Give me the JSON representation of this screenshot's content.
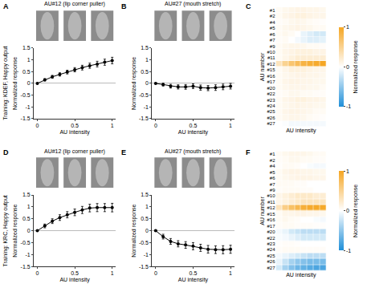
{
  "chart_data": [
    {
      "type": "line",
      "panel": "A",
      "title": "AU#12 (lip corner puller)",
      "side_label": "Training: KDEF, Happy output",
      "xlabel": "AU intensity",
      "ylabel": "Normalized response",
      "x": [
        0,
        0.1,
        0.2,
        0.3,
        0.4,
        0.5,
        0.6,
        0.7,
        0.8,
        0.9,
        1
      ],
      "values": [
        0,
        0.15,
        0.28,
        0.38,
        0.48,
        0.58,
        0.67,
        0.75,
        0.82,
        0.9,
        0.97
      ],
      "errors": [
        0.02,
        0.05,
        0.06,
        0.07,
        0.08,
        0.09,
        0.1,
        0.11,
        0.12,
        0.13,
        0.14
      ],
      "xlim": [
        -0.05,
        1.05
      ],
      "xticks": [
        0,
        0.5,
        1
      ],
      "ylim": [
        -1.5,
        1.5
      ],
      "yticks": [
        -1.5,
        -1,
        -0.5,
        0,
        0.5,
        1,
        1.5
      ],
      "grid": false
    },
    {
      "type": "line",
      "panel": "B",
      "title": "AU#27 (mouth stretch)",
      "xlabel": "AU intensity",
      "ylabel": "Normalized response",
      "x": [
        0,
        0.1,
        0.2,
        0.3,
        0.4,
        0.5,
        0.6,
        0.7,
        0.8,
        0.9,
        1
      ],
      "values": [
        0,
        -0.05,
        -0.12,
        -0.15,
        -0.15,
        -0.12,
        -0.18,
        -0.2,
        -0.18,
        -0.15,
        -0.12
      ],
      "errors": [
        0.02,
        0.06,
        0.08,
        0.09,
        0.1,
        0.1,
        0.11,
        0.11,
        0.12,
        0.12,
        0.12
      ],
      "xlim": [
        -0.05,
        1.05
      ],
      "xticks": [
        0,
        0.5,
        1
      ],
      "ylim": [
        -1.5,
        1.5
      ],
      "yticks": [
        -1.5,
        -1,
        -0.5,
        0,
        0.5,
        1,
        1.5
      ],
      "grid": false
    },
    {
      "type": "heatmap",
      "panel": "C",
      "xlabel": "AU intensity",
      "ylabel": "AU number",
      "colorbar_label": "Normalized response",
      "categories": [
        "#1",
        "#2",
        "#4",
        "#5",
        "#6",
        "#7",
        "#9",
        "#10",
        "#11",
        "#12",
        "#15",
        "#16",
        "#17",
        "#20",
        "#22",
        "#23",
        "#24",
        "#25",
        "#26",
        "#27"
      ],
      "z": [
        [
          0.05,
          0.08,
          0.1,
          0.12,
          0.12,
          0.1,
          0.1,
          0.08
        ],
        [
          0.05,
          0.1,
          0.12,
          0.15,
          0.15,
          0.12,
          0.1,
          0.1
        ],
        [
          0.03,
          0.05,
          0.08,
          0.1,
          0.08,
          0.05,
          0.03,
          0.02
        ],
        [
          0.05,
          0.08,
          0.1,
          0.12,
          0.1,
          0.08,
          0.05,
          0.05
        ],
        [
          0.05,
          0.08,
          0.05,
          0,
          -0.1,
          -0.15,
          -0.2,
          -0.2
        ],
        [
          0.03,
          0.05,
          0,
          -0.05,
          -0.1,
          -0.15,
          -0.15,
          -0.12
        ],
        [
          0.05,
          0.08,
          0.1,
          0.1,
          0.08,
          0.05,
          0.05,
          0.03
        ],
        [
          0.05,
          0.1,
          0.12,
          0.15,
          0.15,
          0.15,
          0.12,
          0.12
        ],
        [
          0.05,
          0.1,
          0.15,
          0.2,
          0.2,
          0.2,
          0.2,
          0.2
        ],
        [
          0.3,
          0.5,
          0.65,
          0.75,
          0.85,
          0.9,
          0.95,
          1.0
        ],
        [
          0.05,
          0.1,
          0.15,
          0.15,
          0.15,
          0.12,
          0.1,
          0.1
        ],
        [
          0.05,
          0.08,
          0.1,
          0.12,
          0.12,
          0.1,
          0.1,
          0.08
        ],
        [
          0.05,
          0.1,
          0.12,
          0.12,
          0.1,
          0.1,
          0.08,
          0.08
        ],
        [
          0.05,
          0.08,
          0.1,
          0.1,
          0.1,
          0.08,
          0.08,
          0.05
        ],
        [
          0.03,
          0.05,
          0.08,
          0.08,
          0.05,
          0.05,
          0.03,
          0.03
        ],
        [
          0.05,
          0.1,
          0.12,
          0.15,
          0.15,
          0.12,
          0.12,
          0.1
        ],
        [
          0.05,
          0.08,
          0.1,
          0.12,
          0.1,
          0.1,
          0.08,
          0.08
        ],
        [
          0.05,
          0.1,
          0.12,
          0.12,
          0.1,
          0.08,
          0.05,
          0.05
        ],
        [
          0.05,
          0.08,
          0.1,
          0.1,
          0.08,
          0.05,
          0.03,
          0.02
        ],
        [
          0,
          -0.02,
          -0.05,
          -0.05,
          -0.05,
          -0.05,
          -0.05,
          -0.05
        ]
      ],
      "zlim": [
        -1,
        1
      ],
      "zticks": [
        1,
        0,
        -1
      ],
      "tick_labels": "y"
    },
    {
      "type": "line",
      "panel": "D",
      "title": "AU#12 (lip corner puller)",
      "side_label": "Training: KRC, Happy output",
      "xlabel": "AU intensity",
      "ylabel": "Normalized response",
      "x": [
        0,
        0.1,
        0.2,
        0.3,
        0.4,
        0.5,
        0.6,
        0.7,
        0.8,
        0.9,
        1
      ],
      "values": [
        0,
        0.2,
        0.4,
        0.55,
        0.67,
        0.77,
        0.87,
        0.95,
        0.97,
        0.97,
        0.97
      ],
      "errors": [
        0.02,
        0.08,
        0.1,
        0.12,
        0.13,
        0.14,
        0.15,
        0.16,
        0.17,
        0.17,
        0.18
      ],
      "xlim": [
        -0.05,
        1.05
      ],
      "xticks": [
        0,
        0.5,
        1
      ],
      "ylim": [
        -1.5,
        1.5
      ],
      "yticks": [
        -1.5,
        -1,
        -0.5,
        0,
        0.5,
        1,
        1.5
      ],
      "grid": false
    },
    {
      "type": "line",
      "panel": "E",
      "title": "AU#27 (mouth stretch)",
      "xlabel": "AU intensity",
      "ylabel": "Normalized response",
      "x": [
        0,
        0.1,
        0.2,
        0.3,
        0.4,
        0.5,
        0.6,
        0.7,
        0.8,
        0.9,
        1
      ],
      "values": [
        0,
        -0.25,
        -0.45,
        -0.55,
        -0.6,
        -0.65,
        -0.72,
        -0.78,
        -0.8,
        -0.8,
        -0.78
      ],
      "errors": [
        0.02,
        0.1,
        0.12,
        0.13,
        0.14,
        0.15,
        0.15,
        0.16,
        0.16,
        0.17,
        0.17
      ],
      "xlim": [
        -0.05,
        1.05
      ],
      "xticks": [
        0,
        0.5,
        1
      ],
      "ylim": [
        -1.5,
        1.5
      ],
      "yticks": [
        -1.5,
        -1,
        -0.5,
        0,
        0.5,
        1,
        1.5
      ],
      "grid": false
    },
    {
      "type": "heatmap",
      "panel": "F",
      "xlabel": "AU intensity",
      "ylabel": "AU number",
      "colorbar_label": "Normalized response",
      "categories": [
        "#1",
        "#2",
        "#4",
        "#5",
        "#6",
        "#7",
        "#9",
        "#10",
        "#11",
        "#12",
        "#15",
        "#16",
        "#17",
        "#20",
        "#22",
        "#23",
        "#24",
        "#25",
        "#26",
        "#27"
      ],
      "z": [
        [
          0.05,
          0.08,
          0.1,
          0.1,
          0.1,
          0.08,
          0.05,
          0.05
        ],
        [
          0.03,
          0.05,
          0.08,
          0.08,
          0.05,
          0.05,
          0.03,
          0.03
        ],
        [
          0.02,
          0.05,
          0.05,
          0.03,
          0,
          -0.03,
          -0.05,
          -0.05
        ],
        [
          0.05,
          0.1,
          0.12,
          0.12,
          0.1,
          0.1,
          0.08,
          0.08
        ],
        [
          0.05,
          0.08,
          0.1,
          0.12,
          0.12,
          0.12,
          0.1,
          0.1
        ],
        [
          0.05,
          0.05,
          0.05,
          0.03,
          0.03,
          0,
          0,
          0
        ],
        [
          0.03,
          0.05,
          0.05,
          0.05,
          0.03,
          0.03,
          0,
          0
        ],
        [
          0.1,
          0.15,
          0.2,
          0.25,
          0.25,
          0.25,
          0.2,
          0.2
        ],
        [
          0.1,
          0.15,
          0.2,
          0.25,
          0.3,
          0.3,
          0.3,
          0.3
        ],
        [
          0.3,
          0.55,
          0.7,
          0.8,
          0.9,
          0.95,
          0.97,
          0.97
        ],
        [
          0.05,
          0.1,
          0.1,
          0.12,
          0.12,
          0.1,
          0.1,
          0.08
        ],
        [
          0.05,
          0.08,
          0.05,
          0.03,
          0,
          0,
          -0.03,
          -0.05
        ],
        [
          0.03,
          0.05,
          0.05,
          0.03,
          0.03,
          0.03,
          0.02,
          0.02
        ],
        [
          -0.05,
          -0.1,
          -0.2,
          -0.25,
          -0.3,
          -0.3,
          -0.3,
          -0.3
        ],
        [
          -0.03,
          -0.05,
          -0.1,
          -0.15,
          -0.2,
          -0.2,
          -0.2,
          -0.2
        ],
        [
          0.02,
          0.03,
          0.03,
          0.02,
          0,
          0,
          0,
          0
        ],
        [
          0.03,
          0.05,
          0.05,
          0.05,
          0.03,
          0.03,
          0.03,
          0.03
        ],
        [
          -0.05,
          -0.1,
          -0.15,
          -0.2,
          -0.25,
          -0.3,
          -0.3,
          -0.3
        ],
        [
          -0.1,
          -0.25,
          -0.4,
          -0.5,
          -0.55,
          -0.6,
          -0.6,
          -0.6
        ],
        [
          -0.2,
          -0.4,
          -0.55,
          -0.65,
          -0.7,
          -0.75,
          -0.8,
          -0.8
        ]
      ],
      "zlim": [
        -1,
        1
      ],
      "zticks": [
        1,
        0,
        -1
      ],
      "tick_labels": "y"
    }
  ]
}
